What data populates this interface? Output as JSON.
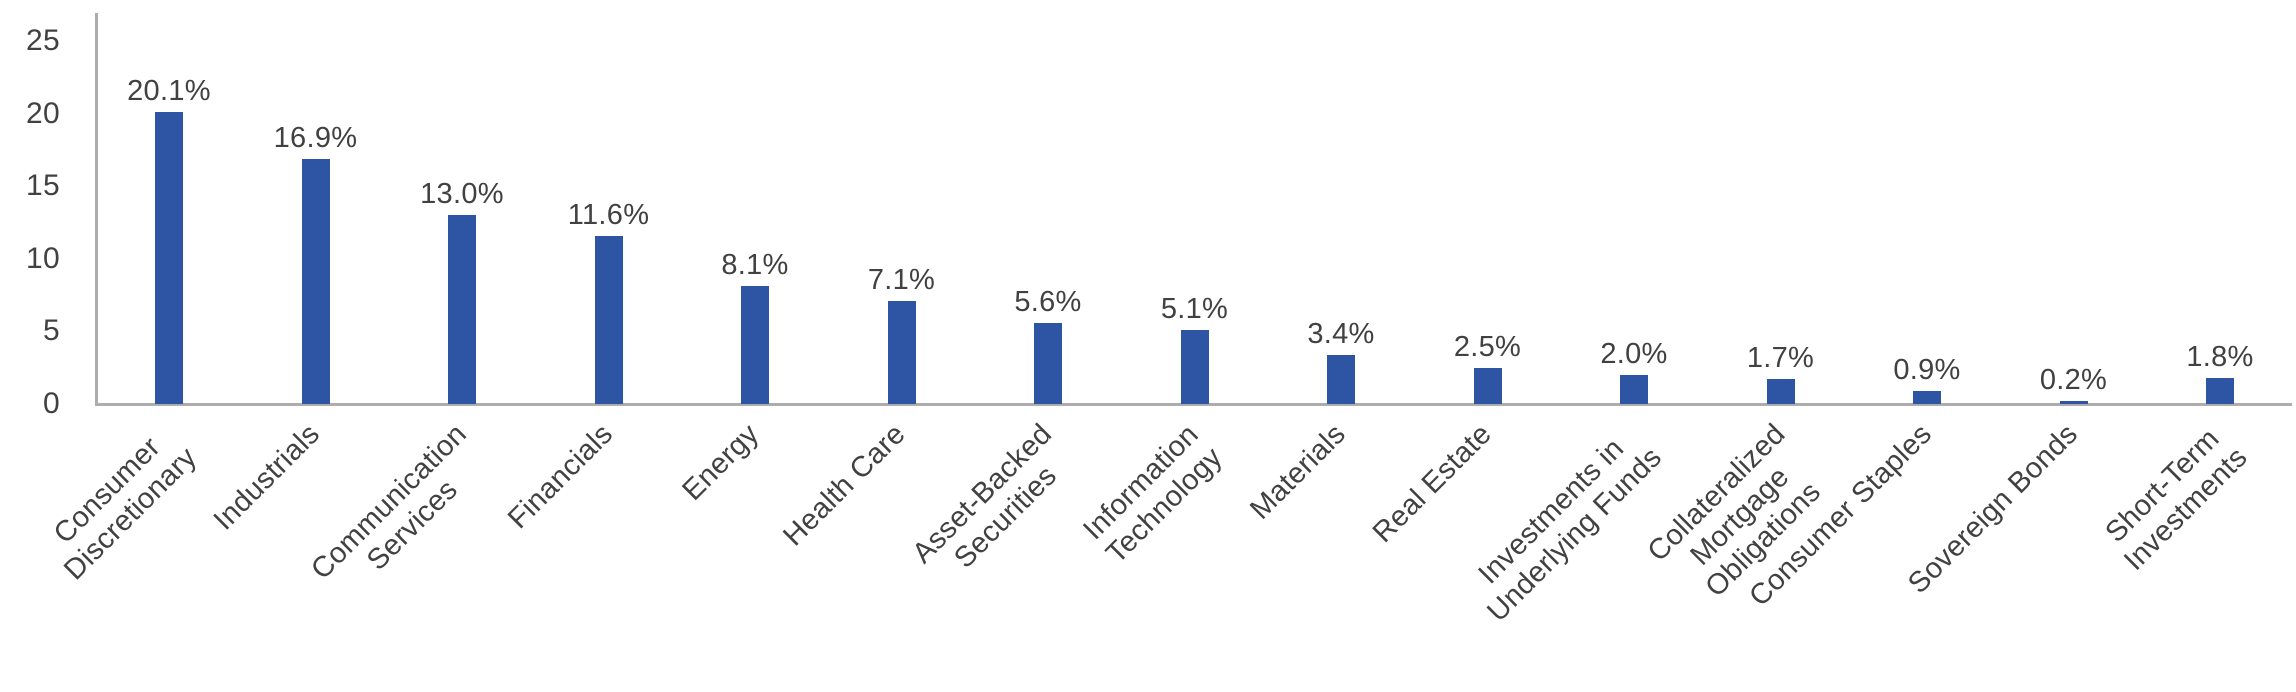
{
  "chart_data": {
    "type": "bar",
    "title": "",
    "categories": [
      "Consumer\nDiscretionary",
      "Industrials",
      "Communication\nServices",
      "Financials",
      "Energy",
      "Health Care",
      "Asset-Backed\nSecurities",
      "Information\nTechnology",
      "Materials",
      "Real Estate",
      "Investments in\nUnderlying Funds",
      "Collateralized\nMortgage\nObligations",
      "Consumer Staples",
      "Sovereign Bonds",
      "Short-Term\nInvestments"
    ],
    "values": [
      20.1,
      16.9,
      13.0,
      11.6,
      8.1,
      7.1,
      5.6,
      5.1,
      3.4,
      2.5,
      2.0,
      1.7,
      0.9,
      0.2,
      1.8
    ],
    "data_labels": [
      "20.1%",
      "16.9%",
      "13.0%",
      "11.6%",
      "8.1%",
      "7.1%",
      "5.6%",
      "5.1%",
      "3.4%",
      "2.5%",
      "2.0%",
      "1.7%",
      "0.9%",
      "0.2%",
      "1.8%"
    ],
    "xlabel": "",
    "ylabel": "",
    "y_ticks": [
      "0",
      "5",
      "10",
      "15",
      "20",
      "25"
    ],
    "y_tick_values": [
      0,
      5,
      10,
      15,
      20,
      25
    ],
    "ylim": [
      0,
      25
    ],
    "grid": false,
    "legend_position": "none",
    "bar_color": "#2e55a4",
    "axis_color": "#adadad",
    "text_color": "#414141"
  }
}
